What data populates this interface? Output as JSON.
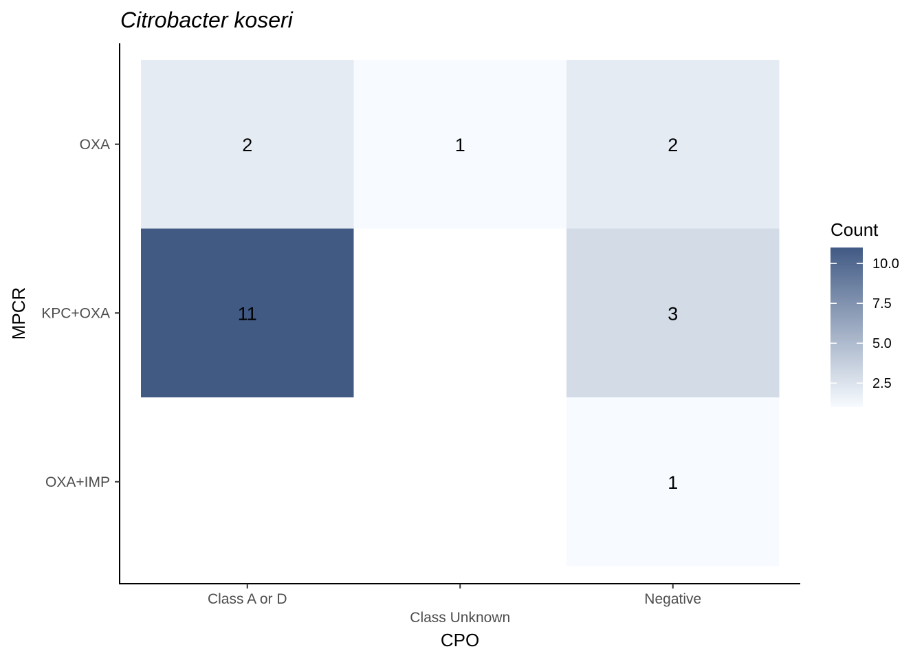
{
  "chart_data": {
    "type": "heatmap",
    "title": "Citrobacter koseri",
    "xlabel": "CPO",
    "ylabel": "MPCR",
    "x_categories": [
      "Class A or D",
      "Class Unknown",
      "Negative"
    ],
    "y_categories": [
      "OXA",
      "KPC+OXA",
      "OXA+IMP"
    ],
    "cells": [
      {
        "x": "Class A or D",
        "y": "OXA",
        "value": 2
      },
      {
        "x": "Class Unknown",
        "y": "OXA",
        "value": 1
      },
      {
        "x": "Negative",
        "y": "OXA",
        "value": 2
      },
      {
        "x": "Class A or D",
        "y": "KPC+OXA",
        "value": 11
      },
      {
        "x": "Negative",
        "y": "KPC+OXA",
        "value": 3
      },
      {
        "x": "Negative",
        "y": "OXA+IMP",
        "value": 1
      }
    ],
    "legend": {
      "title": "Count",
      "range": [
        1,
        11
      ],
      "ticks": [
        2.5,
        5.0,
        7.5,
        10.0
      ],
      "tick_labels": [
        "2.5",
        "5.0",
        "7.5",
        "10.0"
      ],
      "low_color": "#f7fbff",
      "high_color": "#415a84",
      "placement": "right"
    }
  }
}
